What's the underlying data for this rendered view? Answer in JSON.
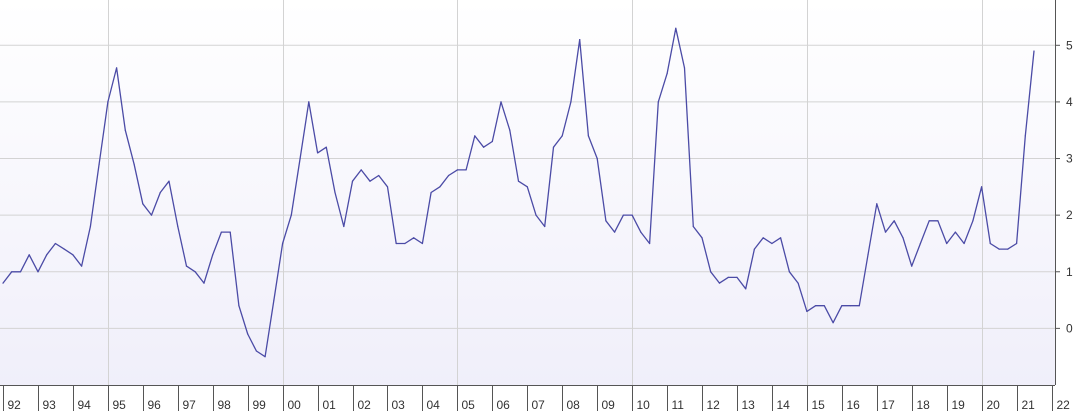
{
  "chart_data": {
    "type": "line",
    "x_start": 1992,
    "points_per_year": 4,
    "series": [
      {
        "values": [
          0.8,
          1.0,
          1.0,
          1.3,
          1.0,
          1.3,
          1.5,
          1.4,
          1.3,
          1.1,
          1.8,
          2.9,
          4.0,
          4.6,
          3.5,
          2.9,
          2.2,
          2.0,
          2.4,
          2.6,
          1.8,
          1.1,
          1.0,
          0.8,
          1.3,
          1.7,
          1.7,
          0.4,
          -0.1,
          -0.4,
          -0.5,
          0.5,
          1.5,
          2.0,
          3.0,
          4.0,
          3.1,
          3.2,
          2.4,
          1.8,
          2.6,
          2.8,
          2.6,
          2.7,
          2.5,
          1.5,
          1.5,
          1.6,
          1.5,
          2.4,
          2.5,
          2.7,
          2.8,
          2.8,
          3.4,
          3.2,
          3.3,
          4.0,
          3.5,
          2.6,
          2.5,
          2.0,
          1.8,
          3.2,
          3.4,
          4.0,
          5.1,
          3.4,
          3.0,
          1.9,
          1.7,
          2.0,
          2.0,
          1.7,
          1.5,
          4.0,
          4.5,
          5.3,
          4.6,
          1.8,
          1.6,
          1.0,
          0.8,
          0.9,
          0.9,
          0.7,
          1.4,
          1.6,
          1.5,
          1.6,
          1.0,
          0.8,
          0.3,
          0.4,
          0.4,
          0.1,
          0.4,
          0.4,
          0.4,
          1.3,
          2.2,
          1.7,
          1.9,
          1.6,
          1.1,
          1.5,
          1.9,
          1.9,
          1.5,
          1.7,
          1.5,
          1.9,
          2.5,
          1.5,
          1.4,
          1.4,
          1.5,
          3.4,
          4.9
        ]
      }
    ],
    "x_ticks": [
      "92",
      "93",
      "94",
      "95",
      "96",
      "97",
      "98",
      "99",
      "00",
      "01",
      "02",
      "03",
      "04",
      "05",
      "06",
      "07",
      "08",
      "09",
      "10",
      "11",
      "12",
      "13",
      "14",
      "15",
      "16",
      "17",
      "18",
      "19",
      "20",
      "21",
      "22"
    ],
    "y_ticks": [
      0,
      1,
      2,
      3,
      4,
      5
    ],
    "ylim": [
      -1.0,
      5.8
    ],
    "xlim": [
      1992,
      2022.1
    ],
    "grid": true,
    "colors": {
      "line": "#4b4ba6",
      "grid": "#d3d3d3",
      "axis": "#555555",
      "bg_top": "#ffffff",
      "bg_bottom": "#f0effa"
    }
  }
}
